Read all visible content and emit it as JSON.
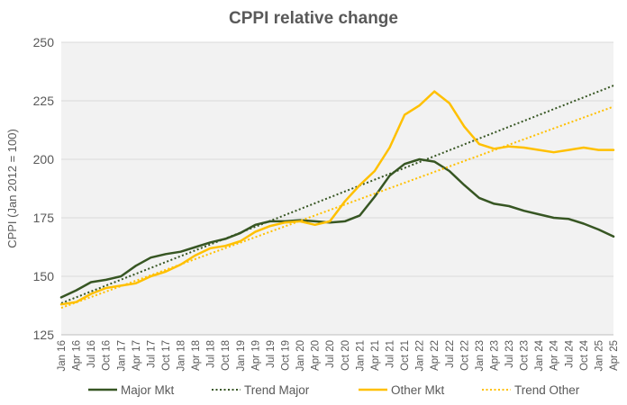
{
  "chart_data": {
    "type": "line",
    "title": "CPPI relative change",
    "ylabel": "CPPI (Jan 2012 = 100)",
    "xlabel": "",
    "ylim": [
      125,
      250
    ],
    "yticks": [
      125,
      150,
      175,
      200,
      225,
      250
    ],
    "grid": true,
    "legend_position": "bottom",
    "x_start": "Jan 16",
    "x_end": "Apr 25",
    "x_tick_labels": [
      "Jan 16",
      "Apr 16",
      "Jul 16",
      "Oct 16",
      "Jan 17",
      "Apr 17",
      "Jul 17",
      "Oct 17",
      "Jan 18",
      "Apr 18",
      "Jul 18",
      "Oct 18",
      "Jan 19",
      "Apr 19",
      "Jul 19",
      "Oct 19",
      "Jan 20",
      "Apr 20",
      "Jul 20",
      "Oct 20",
      "Jan 21",
      "Apr 21",
      "Jul 21",
      "Oct 21",
      "Jan 22",
      "Apr 22",
      "Jul 22",
      "Oct 22",
      "Jan 23",
      "Apr 23",
      "Jul 23",
      "Oct 23",
      "Jan 24",
      "Apr 24",
      "Jul 24",
      "Oct 24",
      "Jan 25",
      "Apr 25"
    ],
    "series": [
      {
        "name": "Major Mkt",
        "color": "#375623",
        "style": "solid",
        "points": [
          [
            "Jan 16",
            141
          ],
          [
            "Apr 16",
            144
          ],
          [
            "Jul 16",
            147.5
          ],
          [
            "Oct 16",
            148.5
          ],
          [
            "Jan 17",
            150
          ],
          [
            "Apr 17",
            154.5
          ],
          [
            "Jul 17",
            158
          ],
          [
            "Oct 17",
            159.5
          ],
          [
            "Jan 18",
            160.5
          ],
          [
            "Apr 18",
            162.5
          ],
          [
            "Jul 18",
            164.5
          ],
          [
            "Oct 18",
            166
          ],
          [
            "Jan 19",
            168.5
          ],
          [
            "Apr 19",
            172
          ],
          [
            "Jul 19",
            173.5
          ],
          [
            "Oct 19",
            173.5
          ],
          [
            "Jan 20",
            174
          ],
          [
            "Apr 20",
            173.5
          ],
          [
            "Jul 20",
            173
          ],
          [
            "Oct 20",
            173.5
          ],
          [
            "Jan 21",
            176
          ],
          [
            "Apr 21",
            184
          ],
          [
            "Jul 21",
            193
          ],
          [
            "Oct 21",
            198
          ],
          [
            "Jan 22",
            200
          ],
          [
            "Apr 22",
            199
          ],
          [
            "Jul 22",
            195
          ],
          [
            "Oct 22",
            189
          ],
          [
            "Jan 23",
            183.5
          ],
          [
            "Apr 23",
            181
          ],
          [
            "Jul 23",
            180
          ],
          [
            "Oct 23",
            178
          ],
          [
            "Jan 24",
            176.5
          ],
          [
            "Apr 24",
            175
          ],
          [
            "Jul 24",
            174.5
          ],
          [
            "Oct 24",
            172.5
          ],
          [
            "Jan 25",
            170
          ],
          [
            "Apr 25",
            167
          ]
        ]
      },
      {
        "name": "Trend Major",
        "color": "#375623",
        "style": "dotted",
        "points": [
          [
            "Jan 16",
            138.5
          ],
          [
            "Apr 25",
            231.5
          ]
        ]
      },
      {
        "name": "Other Mkt",
        "color": "#FFC000",
        "style": "solid",
        "points": [
          [
            "Jan 16",
            138
          ],
          [
            "Apr 16",
            139
          ],
          [
            "Jul 16",
            142.5
          ],
          [
            "Oct 16",
            145
          ],
          [
            "Jan 17",
            146
          ],
          [
            "Apr 17",
            147
          ],
          [
            "Jul 17",
            150
          ],
          [
            "Oct 17",
            152
          ],
          [
            "Jan 18",
            155
          ],
          [
            "Apr 18",
            159
          ],
          [
            "Jul 18",
            162
          ],
          [
            "Oct 18",
            163
          ],
          [
            "Jan 19",
            165
          ],
          [
            "Apr 19",
            169
          ],
          [
            "Jul 19",
            171.5
          ],
          [
            "Oct 19",
            173
          ],
          [
            "Jan 20",
            173.5
          ],
          [
            "Apr 20",
            172
          ],
          [
            "Jul 20",
            173.5
          ],
          [
            "Oct 20",
            182
          ],
          [
            "Jan 21",
            189
          ],
          [
            "Apr 21",
            195
          ],
          [
            "Jul 21",
            205
          ],
          [
            "Oct 21",
            219
          ],
          [
            "Jan 22",
            223
          ],
          [
            "Apr 22",
            229
          ],
          [
            "Jul 22",
            224
          ],
          [
            "Oct 22",
            214
          ],
          [
            "Jan 23",
            206.5
          ],
          [
            "Apr 23",
            204.5
          ],
          [
            "Jul 23",
            205.5
          ],
          [
            "Oct 23",
            205
          ],
          [
            "Jan 24",
            204
          ],
          [
            "Apr 24",
            203
          ],
          [
            "Jul 24",
            204
          ],
          [
            "Oct 24",
            205
          ],
          [
            "Jan 25",
            204
          ],
          [
            "Apr 25",
            204
          ]
        ]
      },
      {
        "name": "Trend Other",
        "color": "#FFC000",
        "style": "dotted",
        "points": [
          [
            "Jan 16",
            136.5
          ],
          [
            "Apr 25",
            222.5
          ]
        ]
      }
    ]
  }
}
